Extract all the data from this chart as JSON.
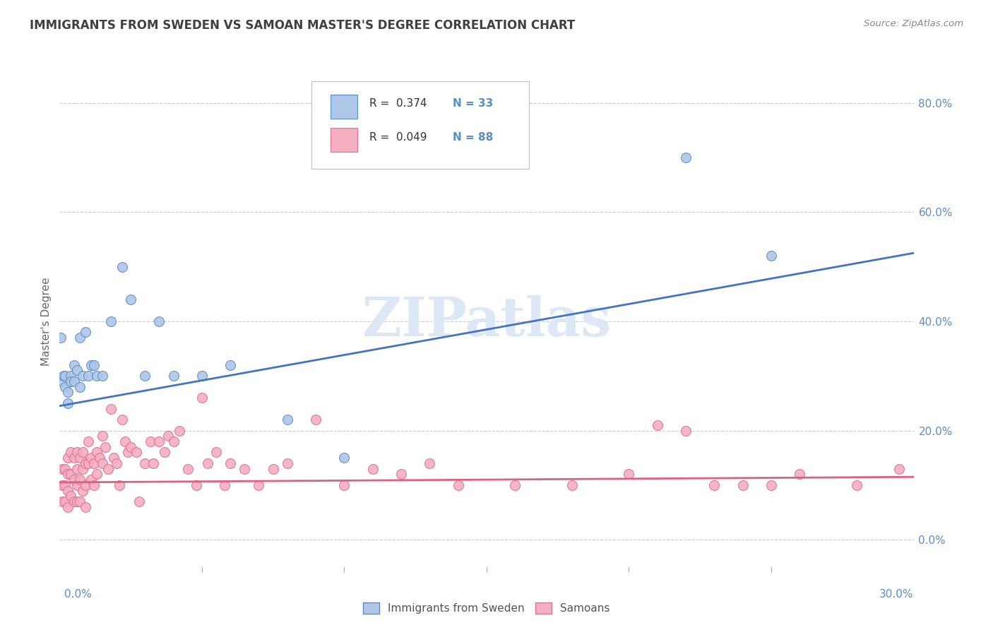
{
  "title": "IMMIGRANTS FROM SWEDEN VS SAMOAN MASTER'S DEGREE CORRELATION CHART",
  "source": "Source: ZipAtlas.com",
  "ylabel": "Master's Degree",
  "xlim": [
    0.0,
    0.3
  ],
  "ylim": [
    -0.05,
    0.85
  ],
  "yticks": [
    0.0,
    0.2,
    0.4,
    0.6,
    0.8
  ],
  "legend_r_sweden": "R =  0.374",
  "legend_n_sweden": "N = 33",
  "legend_r_samoan": "R =  0.049",
  "legend_n_samoan": "N = 88",
  "blue_color": "#aec6e8",
  "pink_color": "#f4afc2",
  "blue_edge_color": "#5b8ec4",
  "pink_edge_color": "#e07090",
  "blue_line_color": "#4472c4",
  "pink_line_color": "#e06080",
  "background_color": "#ffffff",
  "grid_color": "#cccccc",
  "axis_label_color": "#5b8ec4",
  "title_color": "#404040",
  "source_color": "#888888",
  "watermark_color": "#dce8f5",
  "sweden_x": [
    0.0005,
    0.001,
    0.0015,
    0.002,
    0.002,
    0.003,
    0.003,
    0.004,
    0.004,
    0.005,
    0.005,
    0.006,
    0.007,
    0.007,
    0.008,
    0.009,
    0.01,
    0.011,
    0.012,
    0.013,
    0.015,
    0.018,
    0.022,
    0.025,
    0.03,
    0.035,
    0.04,
    0.05,
    0.06,
    0.08,
    0.1,
    0.22,
    0.25
  ],
  "sweden_y": [
    0.37,
    0.29,
    0.3,
    0.3,
    0.28,
    0.27,
    0.25,
    0.3,
    0.29,
    0.32,
    0.29,
    0.31,
    0.37,
    0.28,
    0.3,
    0.38,
    0.3,
    0.32,
    0.32,
    0.3,
    0.3,
    0.4,
    0.5,
    0.44,
    0.3,
    0.4,
    0.3,
    0.3,
    0.32,
    0.22,
    0.15,
    0.7,
    0.52
  ],
  "samoan_x": [
    0.001,
    0.001,
    0.001,
    0.002,
    0.002,
    0.002,
    0.003,
    0.003,
    0.003,
    0.003,
    0.004,
    0.004,
    0.004,
    0.005,
    0.005,
    0.005,
    0.006,
    0.006,
    0.006,
    0.006,
    0.007,
    0.007,
    0.007,
    0.008,
    0.008,
    0.008,
    0.009,
    0.009,
    0.009,
    0.01,
    0.01,
    0.011,
    0.011,
    0.012,
    0.012,
    0.013,
    0.013,
    0.014,
    0.015,
    0.015,
    0.016,
    0.017,
    0.018,
    0.019,
    0.02,
    0.021,
    0.022,
    0.023,
    0.024,
    0.025,
    0.027,
    0.028,
    0.03,
    0.032,
    0.033,
    0.035,
    0.037,
    0.038,
    0.04,
    0.042,
    0.045,
    0.048,
    0.05,
    0.052,
    0.055,
    0.058,
    0.06,
    0.065,
    0.07,
    0.075,
    0.08,
    0.09,
    0.1,
    0.11,
    0.12,
    0.13,
    0.14,
    0.16,
    0.18,
    0.2,
    0.21,
    0.22,
    0.23,
    0.24,
    0.25,
    0.26,
    0.28,
    0.295
  ],
  "samoan_y": [
    0.13,
    0.1,
    0.07,
    0.13,
    0.1,
    0.07,
    0.15,
    0.12,
    0.09,
    0.06,
    0.16,
    0.12,
    0.08,
    0.15,
    0.11,
    0.07,
    0.16,
    0.13,
    0.1,
    0.07,
    0.15,
    0.11,
    0.07,
    0.16,
    0.13,
    0.09,
    0.14,
    0.1,
    0.06,
    0.18,
    0.14,
    0.15,
    0.11,
    0.14,
    0.1,
    0.16,
    0.12,
    0.15,
    0.19,
    0.14,
    0.17,
    0.13,
    0.24,
    0.15,
    0.14,
    0.1,
    0.22,
    0.18,
    0.16,
    0.17,
    0.16,
    0.07,
    0.14,
    0.18,
    0.14,
    0.18,
    0.16,
    0.19,
    0.18,
    0.2,
    0.13,
    0.1,
    0.26,
    0.14,
    0.16,
    0.1,
    0.14,
    0.13,
    0.1,
    0.13,
    0.14,
    0.22,
    0.1,
    0.13,
    0.12,
    0.14,
    0.1,
    0.1,
    0.1,
    0.12,
    0.21,
    0.2,
    0.1,
    0.1,
    0.1,
    0.12,
    0.1,
    0.13
  ],
  "sweden_line_x0": 0.0,
  "sweden_line_x1": 0.3,
  "sweden_line_y0": 0.245,
  "sweden_line_y1": 0.525,
  "samoan_line_x0": 0.0,
  "samoan_line_x1": 0.3,
  "samoan_line_y0": 0.105,
  "samoan_line_y1": 0.115
}
